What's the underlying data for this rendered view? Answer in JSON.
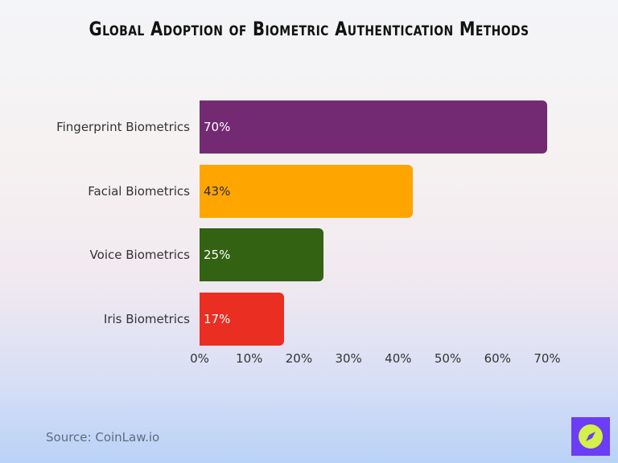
{
  "title": "Global Adoption of Biometric Authentication Methods",
  "source": "Source: CoinLaw.io",
  "chart_data": {
    "type": "bar",
    "orientation": "horizontal",
    "title": "Global Adoption of Biometric Authentication Methods",
    "categories": [
      "Fingerprint Biometrics",
      "Facial Biometrics",
      "Voice Biometrics",
      "Iris Biometrics"
    ],
    "values": [
      70,
      43,
      25,
      17
    ],
    "value_labels": [
      "70%",
      "43%",
      "25%",
      "17%"
    ],
    "colors": [
      "#732a72",
      "#fea500",
      "#336213",
      "#ea2e22"
    ],
    "label_colors": [
      "#ffffff",
      "#2a2a2a",
      "#ffffff",
      "#ffffff"
    ],
    "xlabel": "",
    "ylabel": "",
    "xlim": [
      0,
      70
    ],
    "xticks": [
      "0%",
      "10%",
      "20%",
      "30%",
      "40%",
      "50%",
      "60%",
      "70%"
    ],
    "grid": false,
    "legend": "none"
  },
  "logo": {
    "icon": "compass-icon",
    "bg": "#6b3df5",
    "fg": "#d4f04a"
  }
}
